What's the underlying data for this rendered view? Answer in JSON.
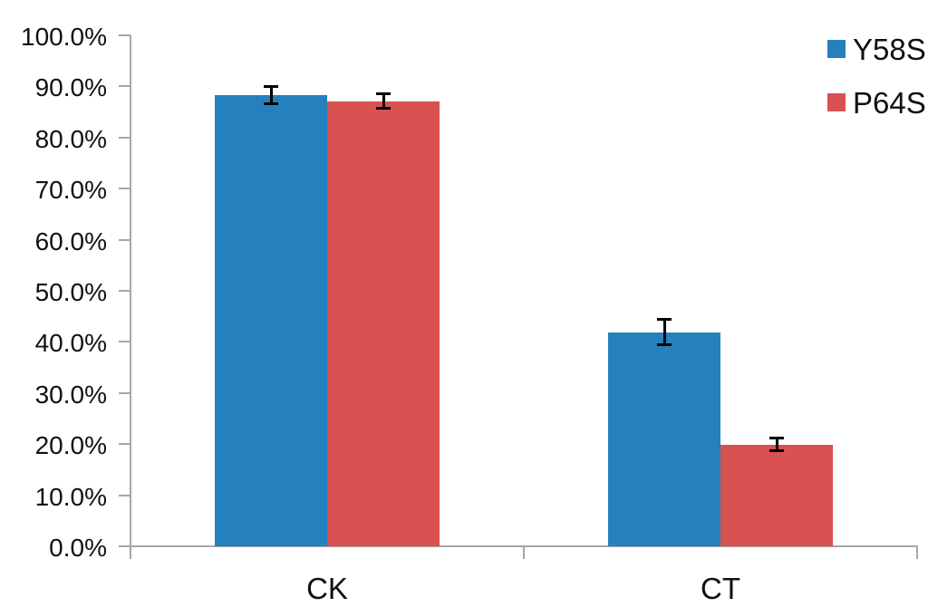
{
  "chart_data": {
    "type": "bar",
    "title": "",
    "categories": [
      "CK",
      "CT"
    ],
    "series": [
      {
        "name": "Y58S",
        "color": "#2581BE",
        "values": [
          88.3,
          41.9
        ],
        "errors": [
          1.9,
          2.7
        ]
      },
      {
        "name": "P64S",
        "color": "#D95150",
        "values": [
          87.1,
          19.9
        ],
        "errors": [
          1.7,
          1.5
        ]
      }
    ],
    "xlabel": "",
    "ylabel": "",
    "ylim": [
      0,
      100
    ],
    "ytick_step": 10,
    "ytick_labels": [
      "0.0%",
      "10.0%",
      "20.0%",
      "30.0%",
      "40.0%",
      "50.0%",
      "60.0%",
      "70.0%",
      "80.0%",
      "90.0%",
      "100.0%"
    ],
    "grid": false,
    "error_bars": true,
    "legend_position": "top-right"
  },
  "colors": {
    "axis": "#a6a6a6",
    "text": "#111111",
    "error_bar": "#000000",
    "background": "#ffffff"
  }
}
